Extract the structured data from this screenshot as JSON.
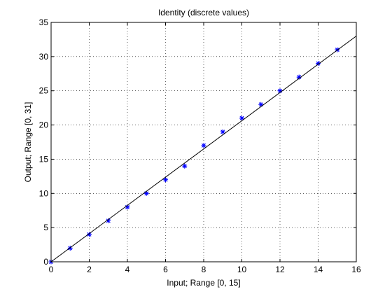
{
  "chart_data": {
    "type": "scatter",
    "title": "Identity (discrete values)",
    "xlabel": "Input; Range [0, 15]",
    "ylabel": "Output; Range [0, 31]",
    "xlim": [
      0,
      16
    ],
    "ylim": [
      0,
      35
    ],
    "xticks": [
      0,
      2,
      4,
      6,
      8,
      10,
      12,
      14,
      16
    ],
    "yticks": [
      0,
      5,
      10,
      15,
      20,
      25,
      30,
      35
    ],
    "grid": true,
    "legend": "none",
    "series": [
      {
        "type": "scatter",
        "marker": "star",
        "color": "#0000ff",
        "x": [
          0,
          1,
          2,
          3,
          4,
          5,
          6,
          7,
          8,
          9,
          10,
          11,
          12,
          13,
          14,
          15
        ],
        "y": [
          0,
          2,
          4,
          6,
          8,
          10,
          12,
          14,
          17,
          19,
          21,
          23,
          25,
          27,
          29,
          31
        ]
      },
      {
        "type": "line",
        "color": "#000000",
        "x": [
          0,
          16
        ],
        "y": [
          0,
          33
        ]
      }
    ]
  }
}
